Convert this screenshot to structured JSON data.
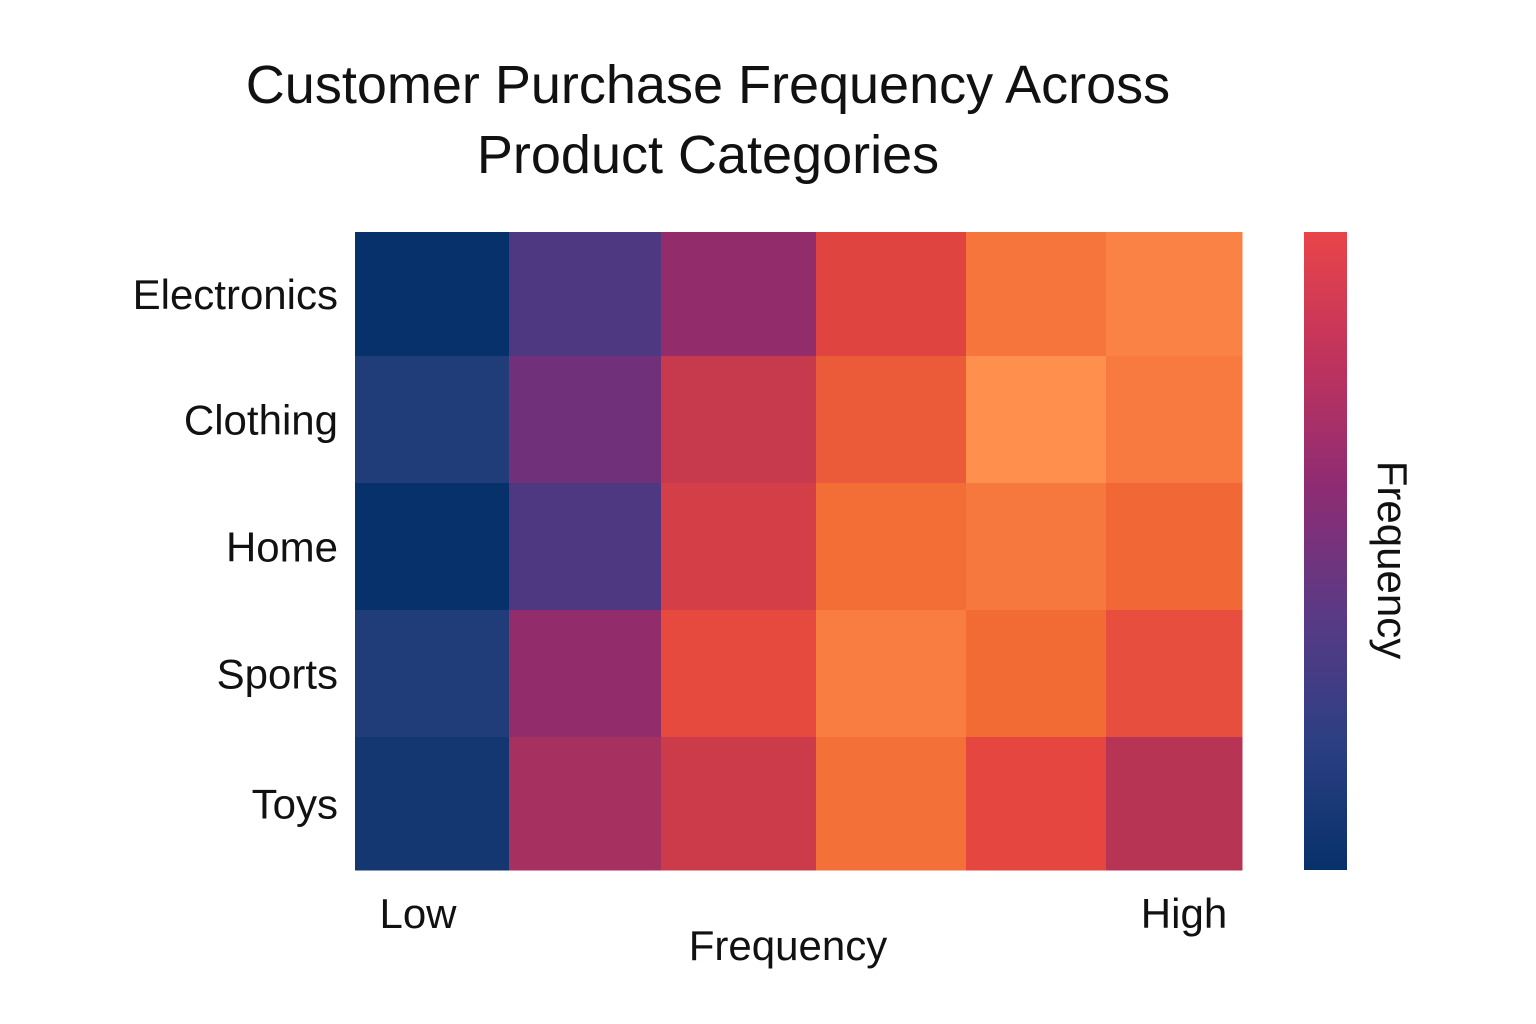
{
  "chart_data": {
    "type": "heatmap",
    "title_lines": [
      "Customer Purchase Frequency Across",
      "Product Categories"
    ],
    "xlabel": "Frequency",
    "x_tick_low": "Low",
    "x_tick_high": "High",
    "colorbar_label": "Frequency",
    "rows": [
      "Electronics",
      "Clothing",
      "Home",
      "Sports",
      "Toys"
    ],
    "columns": 6,
    "values": [
      [
        0.0,
        0.25,
        0.45,
        0.7,
        0.9,
        0.95
      ],
      [
        0.1,
        0.35,
        0.6,
        0.8,
        1.0,
        0.92
      ],
      [
        0.0,
        0.25,
        0.65,
        0.87,
        0.91,
        0.85
      ],
      [
        0.1,
        0.45,
        0.73,
        0.93,
        0.86,
        0.75
      ],
      [
        0.05,
        0.5,
        0.62,
        0.88,
        0.72,
        0.55
      ]
    ],
    "value_range": [
      0,
      1
    ],
    "colormap": [
      "#07316a",
      "#2b4280",
      "#5a3483",
      "#8b2a6f",
      "#c0364f",
      "#e4453f",
      "#f26a35",
      "#ff8f4d"
    ],
    "colorbar_colors": [
      "#07316a",
      "#2c3f82",
      "#5a3a86",
      "#8e2c73",
      "#c0335d",
      "#e84549"
    ]
  }
}
